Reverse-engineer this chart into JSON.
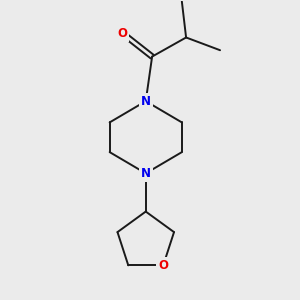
{
  "bg_color": "#ebebeb",
  "bond_color": "#1a1a1a",
  "N_color": "#0000ee",
  "O_color": "#ee0000",
  "font_size_atom": 8.5,
  "line_width": 1.4,
  "figsize": [
    3.0,
    3.0
  ],
  "dpi": 100,
  "xlim": [
    -1.8,
    2.0
  ],
  "ylim": [
    -3.8,
    3.2
  ]
}
